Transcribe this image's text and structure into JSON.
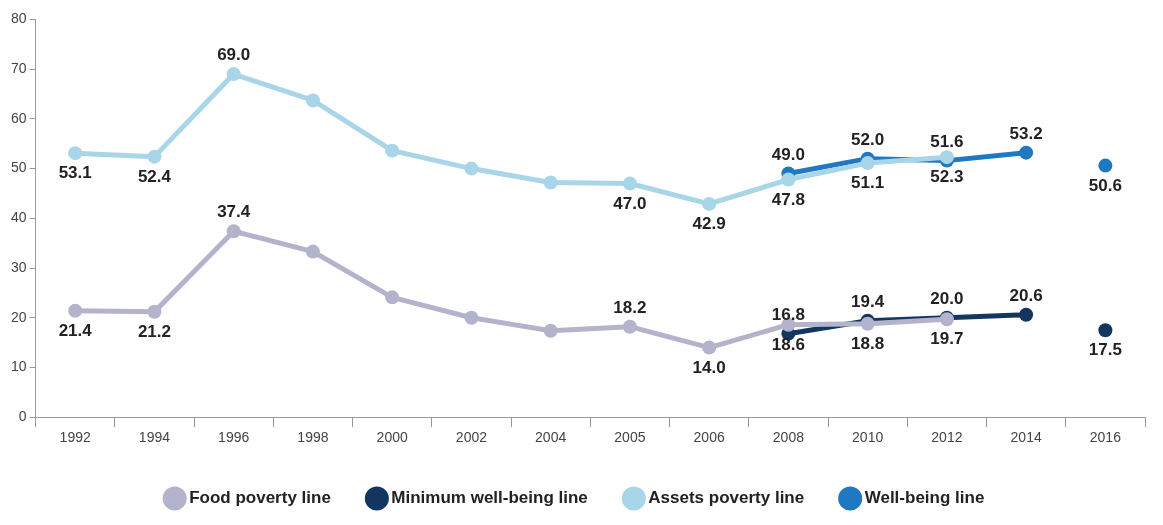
{
  "chart_data": {
    "type": "line",
    "categories": [
      "1992",
      "1994",
      "1996",
      "1998",
      "2000",
      "2002",
      "2004",
      "2005",
      "2006",
      "2008",
      "2010",
      "2012",
      "2014",
      "2016"
    ],
    "ylim": [
      0,
      80
    ],
    "yticks": [
      0,
      10,
      20,
      30,
      40,
      50,
      60,
      70,
      80
    ],
    "grid": false,
    "legend": "bottom",
    "marker": "circle",
    "series": [
      {
        "name": "Food poverty line",
        "color": "#b3b3cc",
        "values": [
          21.4,
          21.2,
          37.4,
          33.3,
          24.1,
          20.0,
          17.4,
          18.2,
          14.0,
          18.6,
          18.8,
          19.7,
          null,
          null
        ],
        "value_labels": [
          "21.4",
          "21.2",
          "37.4",
          null,
          null,
          null,
          null,
          "18.2",
          "14.0",
          "18.6",
          "18.8",
          "19.7",
          null,
          null
        ]
      },
      {
        "name": "Minimum well-being line",
        "color": "#12365f",
        "values": [
          null,
          null,
          null,
          null,
          null,
          null,
          null,
          null,
          null,
          16.8,
          19.4,
          20.0,
          20.6,
          null
        ],
        "value_labels": [
          null,
          null,
          null,
          null,
          null,
          null,
          null,
          null,
          null,
          "16.8",
          "19.4",
          "20.0",
          "20.6",
          null
        ]
      },
      {
        "type": "scatter",
        "color": "#12365f",
        "values": [
          null,
          null,
          null,
          null,
          null,
          null,
          null,
          null,
          null,
          null,
          null,
          null,
          null,
          17.5
        ],
        "value_labels": [
          null,
          null,
          null,
          null,
          null,
          null,
          null,
          null,
          null,
          null,
          null,
          null,
          null,
          "17.5"
        ]
      },
      {
        "name": "Assets poverty line",
        "color": "#a8d5e8",
        "values": [
          53.1,
          52.4,
          69.0,
          63.7,
          53.6,
          50.0,
          47.2,
          47.0,
          42.9,
          47.8,
          51.1,
          52.3,
          null,
          null
        ],
        "value_labels": [
          "53.1",
          "52.4",
          "69.0",
          null,
          null,
          null,
          null,
          "47.0",
          "42.9",
          "47.8",
          "51.1",
          "52.3",
          null,
          null
        ]
      },
      {
        "name": "Well-being line",
        "color": "#1f78c1",
        "values": [
          null,
          null,
          null,
          null,
          null,
          null,
          null,
          null,
          null,
          49.0,
          52.0,
          51.6,
          53.2,
          null
        ],
        "value_labels": [
          null,
          null,
          null,
          null,
          null,
          null,
          null,
          null,
          null,
          "49.0",
          "52.0",
          "51.6",
          "53.2",
          null
        ]
      },
      {
        "type": "scatter",
        "color": "#1f78c1",
        "values": [
          null,
          null,
          null,
          null,
          null,
          null,
          null,
          null,
          null,
          null,
          null,
          null,
          null,
          50.6
        ],
        "value_labels": [
          null,
          null,
          null,
          null,
          null,
          null,
          null,
          null,
          null,
          null,
          null,
          null,
          null,
          "50.6"
        ]
      }
    ]
  }
}
